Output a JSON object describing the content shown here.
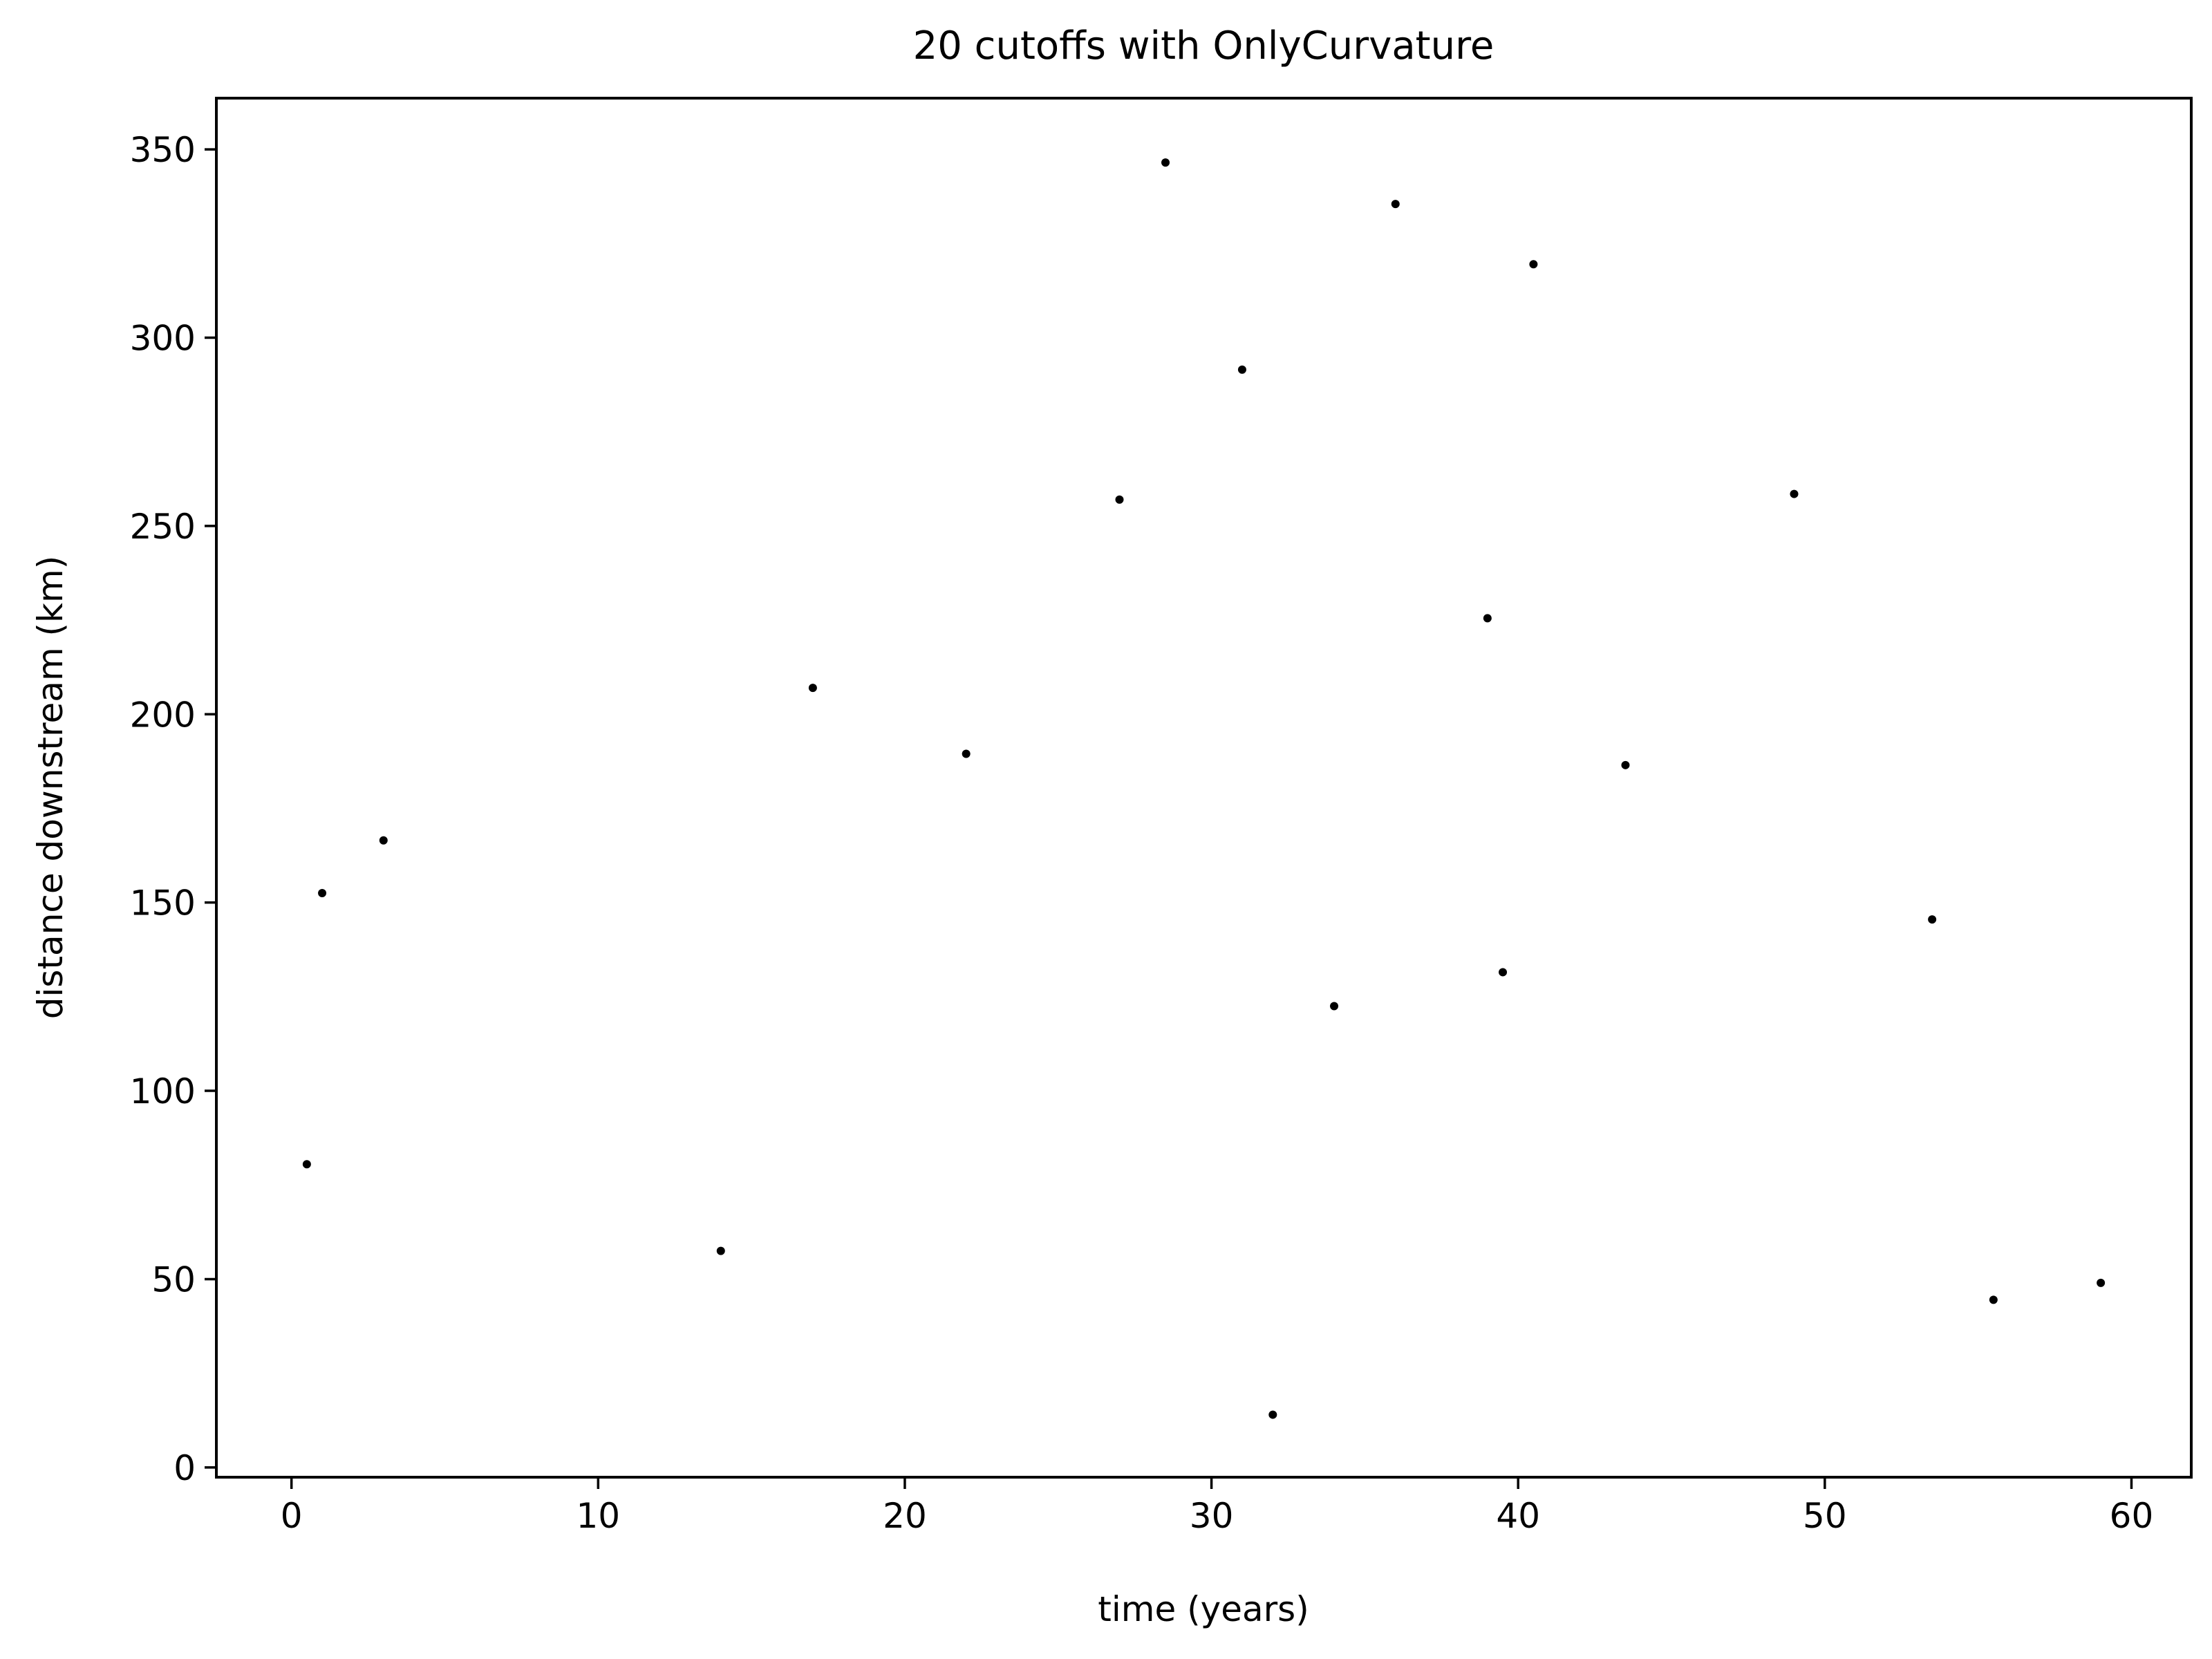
{
  "chart_data": {
    "type": "scatter",
    "title": "20 cutoffs with OnlyCurvature",
    "xlabel": "time (years)",
    "ylabel": "distance downstream (km)",
    "xlim": [
      -2.45,
      61.95
    ],
    "ylim": [
      -2.6,
      363.6
    ],
    "xticks": [
      0,
      10,
      20,
      30,
      40,
      50,
      60
    ],
    "yticks": [
      0,
      50,
      100,
      150,
      200,
      250,
      300,
      350
    ],
    "grid": false,
    "legend": "none",
    "marker_color": "#000000",
    "points": [
      {
        "x": 0.5,
        "y": 80.5
      },
      {
        "x": 1.0,
        "y": 152.5
      },
      {
        "x": 3.0,
        "y": 166.5
      },
      {
        "x": 14.0,
        "y": 57.5
      },
      {
        "x": 17.0,
        "y": 207.0
      },
      {
        "x": 22.0,
        "y": 189.5
      },
      {
        "x": 27.0,
        "y": 257.0
      },
      {
        "x": 28.5,
        "y": 346.5
      },
      {
        "x": 31.0,
        "y": 291.5
      },
      {
        "x": 32.0,
        "y": 14.0
      },
      {
        "x": 34.0,
        "y": 122.5
      },
      {
        "x": 36.0,
        "y": 335.5
      },
      {
        "x": 39.0,
        "y": 225.5
      },
      {
        "x": 39.5,
        "y": 131.5
      },
      {
        "x": 40.5,
        "y": 319.5
      },
      {
        "x": 43.5,
        "y": 186.5
      },
      {
        "x": 49.0,
        "y": 258.5
      },
      {
        "x": 53.5,
        "y": 145.5
      },
      {
        "x": 55.5,
        "y": 44.5
      },
      {
        "x": 59.0,
        "y": 49.0
      }
    ]
  }
}
